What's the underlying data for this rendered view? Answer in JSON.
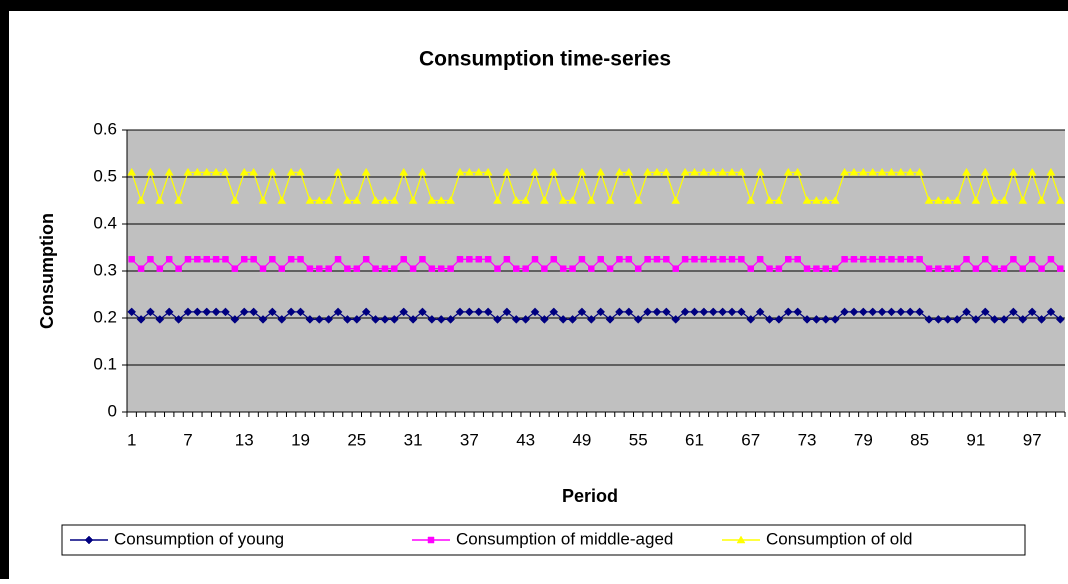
{
  "chart_data": {
    "type": "line",
    "title": "Consumption time-series",
    "x_label": "Period",
    "y_label": "Consumption",
    "categories": [
      1,
      null,
      null,
      null,
      null,
      null,
      7,
      null,
      null,
      null,
      null,
      null,
      13,
      null,
      null,
      null,
      null,
      null,
      19,
      null,
      null,
      null,
      null,
      null,
      25,
      null,
      null,
      null,
      null,
      null,
      31,
      null,
      null,
      null,
      null,
      null,
      37,
      null,
      null,
      null,
      null,
      null,
      43,
      null,
      null,
      null,
      null,
      null,
      49,
      null,
      null,
      null,
      null,
      null,
      55,
      null,
      null,
      null,
      null,
      null,
      61,
      null,
      null,
      null,
      null,
      null,
      67,
      null,
      null,
      null,
      null,
      null,
      73,
      null,
      null,
      null,
      null,
      null,
      79,
      null,
      null,
      null,
      null,
      null,
      85,
      null,
      null,
      null,
      null,
      null,
      91,
      null,
      null,
      null,
      null,
      null,
      97,
      null,
      null,
      null
    ],
    "ylim": [
      0,
      0.6
    ],
    "yticks": [
      0,
      0.1,
      0.2,
      0.3,
      0.4,
      0.5,
      0.6
    ],
    "grid": true,
    "legend": "bottom",
    "series": [
      {
        "name": "Consumption of young",
        "color": "#000080",
        "marker": "diamond",
        "values": [
          0.213,
          0.197,
          0.213,
          0.197,
          0.213,
          0.197,
          0.213,
          0.213,
          0.213,
          0.213,
          0.213,
          0.197,
          0.213,
          0.213,
          0.197,
          0.213,
          0.197,
          0.213,
          0.213,
          0.197,
          0.197,
          0.197,
          0.213,
          0.197,
          0.197,
          0.213,
          0.197,
          0.197,
          0.197,
          0.213,
          0.197,
          0.213,
          0.197,
          0.197,
          0.197,
          0.213,
          0.213,
          0.213,
          0.213,
          0.197,
          0.213,
          0.197,
          0.197,
          0.213,
          0.197,
          0.213,
          0.197,
          0.197,
          0.213,
          0.197,
          0.213,
          0.197,
          0.213,
          0.213,
          0.197,
          0.213,
          0.213,
          0.213,
          0.197,
          0.213,
          0.213,
          0.213,
          0.213,
          0.213,
          0.213,
          0.213,
          0.197,
          0.213,
          0.197,
          0.197,
          0.213,
          0.213,
          0.197,
          0.197,
          0.197,
          0.197,
          0.213,
          0.213,
          0.213,
          0.213,
          0.213,
          0.213,
          0.213,
          0.213,
          0.213,
          0.197,
          0.197,
          0.197,
          0.197,
          0.213,
          0.197,
          0.213,
          0.197,
          0.197,
          0.213,
          0.197,
          0.213,
          0.197,
          0.213,
          0.197
        ]
      },
      {
        "name": "Consumption of middle-aged",
        "color": "#ff00ff",
        "marker": "square",
        "values": [
          0.325,
          0.305,
          0.325,
          0.305,
          0.325,
          0.305,
          0.325,
          0.325,
          0.325,
          0.325,
          0.325,
          0.305,
          0.325,
          0.325,
          0.305,
          0.325,
          0.305,
          0.325,
          0.325,
          0.305,
          0.305,
          0.305,
          0.325,
          0.305,
          0.305,
          0.325,
          0.305,
          0.305,
          0.305,
          0.325,
          0.305,
          0.325,
          0.305,
          0.305,
          0.305,
          0.325,
          0.325,
          0.325,
          0.325,
          0.305,
          0.325,
          0.305,
          0.305,
          0.325,
          0.305,
          0.325,
          0.305,
          0.305,
          0.325,
          0.305,
          0.325,
          0.305,
          0.325,
          0.325,
          0.305,
          0.325,
          0.325,
          0.325,
          0.305,
          0.325,
          0.325,
          0.325,
          0.325,
          0.325,
          0.325,
          0.325,
          0.305,
          0.325,
          0.305,
          0.305,
          0.325,
          0.325,
          0.305,
          0.305,
          0.305,
          0.305,
          0.325,
          0.325,
          0.325,
          0.325,
          0.325,
          0.325,
          0.325,
          0.325,
          0.325,
          0.305,
          0.305,
          0.305,
          0.305,
          0.325,
          0.305,
          0.325,
          0.305,
          0.305,
          0.325,
          0.305,
          0.325,
          0.305,
          0.325,
          0.305
        ]
      },
      {
        "name": "Consumption of old",
        "color": "#ffff00",
        "marker": "triangle",
        "values": [
          0.51,
          0.45,
          0.51,
          0.45,
          0.51,
          0.45,
          0.51,
          0.51,
          0.51,
          0.51,
          0.51,
          0.45,
          0.51,
          0.51,
          0.45,
          0.51,
          0.45,
          0.51,
          0.51,
          0.45,
          0.45,
          0.45,
          0.51,
          0.45,
          0.45,
          0.51,
          0.45,
          0.45,
          0.45,
          0.51,
          0.45,
          0.51,
          0.45,
          0.45,
          0.45,
          0.51,
          0.51,
          0.51,
          0.51,
          0.45,
          0.51,
          0.45,
          0.45,
          0.51,
          0.45,
          0.51,
          0.45,
          0.45,
          0.51,
          0.45,
          0.51,
          0.45,
          0.51,
          0.51,
          0.45,
          0.51,
          0.51,
          0.51,
          0.45,
          0.51,
          0.51,
          0.51,
          0.51,
          0.51,
          0.51,
          0.51,
          0.45,
          0.51,
          0.45,
          0.45,
          0.51,
          0.51,
          0.45,
          0.45,
          0.45,
          0.45,
          0.51,
          0.51,
          0.51,
          0.51,
          0.51,
          0.51,
          0.51,
          0.51,
          0.51,
          0.45,
          0.45,
          0.45,
          0.45,
          0.51,
          0.45,
          0.51,
          0.45,
          0.45,
          0.51,
          0.45,
          0.51,
          0.45,
          0.51,
          0.45
        ]
      }
    ]
  }
}
